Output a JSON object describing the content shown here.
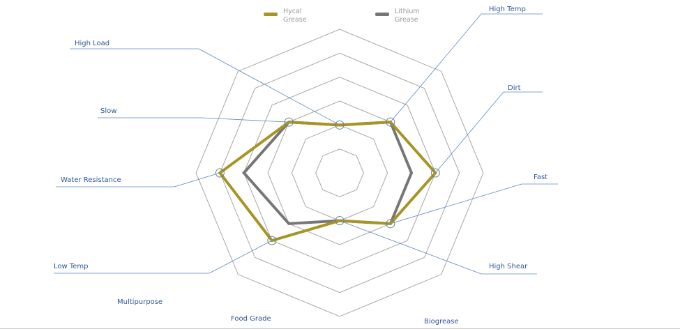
{
  "chart_data": {
    "type": "radar",
    "categories": [
      "High Load",
      "High Temp",
      "Dirt",
      "Fast",
      "High Shear",
      "Low Temp",
      "Water Resistance",
      "Slow"
    ],
    "other_labels": [
      "Multipurpose",
      "Food Grade",
      "Biogrease"
    ],
    "series": [
      {
        "name": "Hycal Grease",
        "color": "#a69524",
        "values": [
          2,
          3,
          4,
          3,
          2,
          4,
          5,
          3
        ]
      },
      {
        "name": "Lithium Grease",
        "color": "#767676",
        "values": [
          2,
          3,
          3,
          3,
          2,
          3,
          4,
          3
        ]
      }
    ],
    "rlim": [
      0,
      6
    ],
    "rticks": [
      1,
      2,
      3,
      4,
      5,
      6
    ],
    "grid": true
  }
}
